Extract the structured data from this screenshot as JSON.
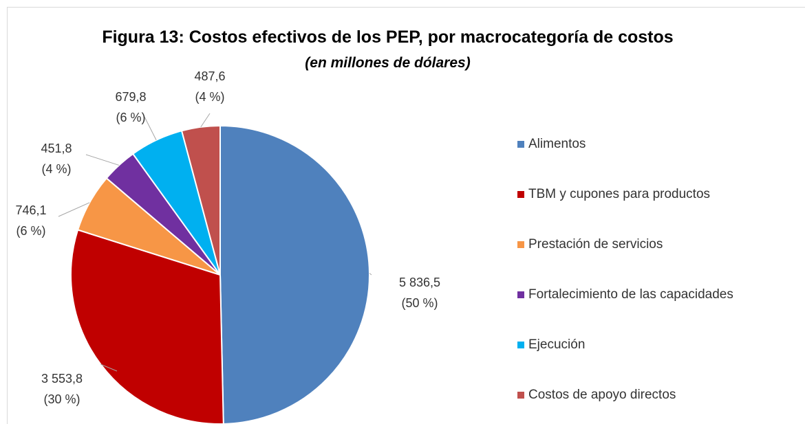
{
  "chart_data": {
    "type": "pie",
    "title": "Figura 13: Costos efectivos de los PEP, por macrocategoría de costos",
    "subtitle": "(en millones de dólares)",
    "categories": [
      "Alimentos",
      "TBM y cupones para productos",
      "Prestación de servicios",
      "Fortalecimiento de las capacidades",
      "Ejecución",
      "Costos de apoyo directos"
    ],
    "values": [
      5836.5,
      3553.8,
      746.1,
      451.8,
      679.8,
      487.6
    ],
    "value_labels": [
      "5 836,5",
      "3 553,8",
      "746,1",
      "451,8",
      "679,8",
      "487,6"
    ],
    "percent_labels": [
      "(50 %)",
      "(30 %)",
      "(6 %)",
      "(4 %)",
      "(6 %)",
      "(4 %)"
    ],
    "colors": [
      "#4f81bd",
      "#c00000",
      "#f79646",
      "#7030a0",
      "#00b0f0",
      "#c0504d"
    ],
    "legend": "right"
  }
}
